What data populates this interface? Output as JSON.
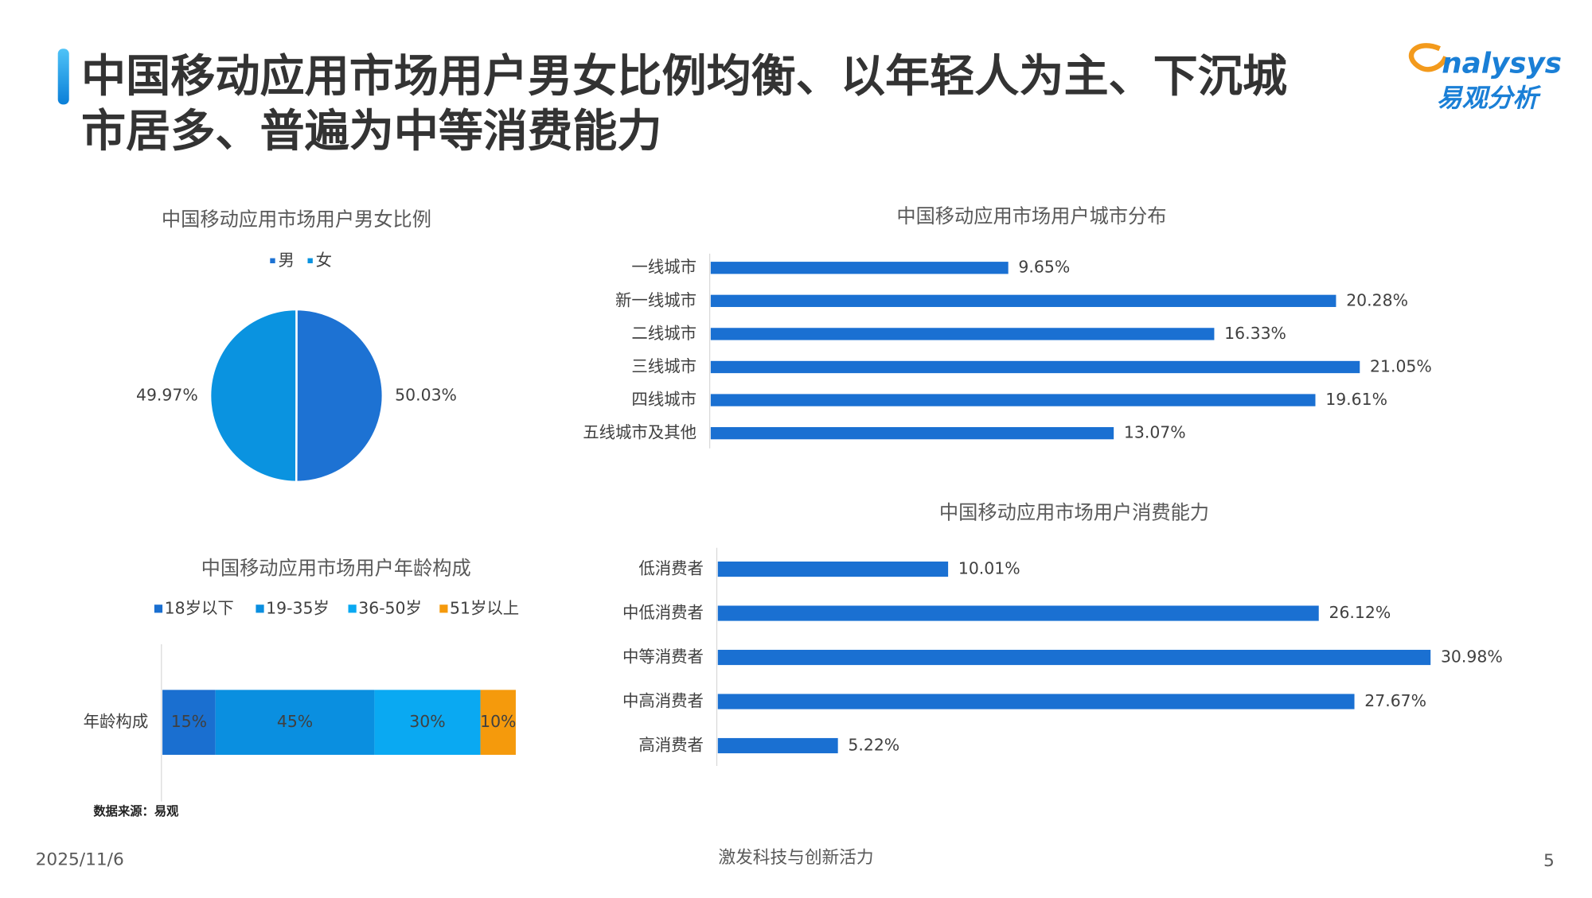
{
  "header": {
    "title": [
      "中国移动应用市场用户男女比例均衡、以年轻人为主、下沉城",
      "市居多、普遍为中等消费能力"
    ],
    "logo_text": "nalysys",
    "logo_cn": "易观分析"
  },
  "chart_data": [
    {
      "type": "pie",
      "title": "中国移动应用市场用户男女比例",
      "categories": [
        "男",
        "女"
      ],
      "values": [
        50.03,
        49.97
      ],
      "value_labels": [
        "50.03%",
        "49.97%"
      ],
      "colors": [
        "#1d72d3",
        "#0a93e0"
      ]
    },
    {
      "type": "bar",
      "title": "中国移动应用市场用户城市分布",
      "categories": [
        "一线城市",
        "新一线城市",
        "二线城市",
        "三线城市",
        "四线城市",
        "五线城市及其他"
      ],
      "values": [
        9.65,
        20.28,
        16.33,
        21.05,
        19.61,
        13.07
      ],
      "value_labels": [
        "9.65%",
        "20.28%",
        "16.33%",
        "21.05%",
        "19.61%",
        "13.07%"
      ],
      "color": "#1a70d2"
    },
    {
      "type": "stacked_bar",
      "title": "中国移动应用市场用户年龄构成",
      "categories": [
        "年龄构成"
      ],
      "series": [
        {
          "name": "18岁以下",
          "color": "#1a6fd0",
          "values": [
            15
          ],
          "value_labels": [
            "15%"
          ]
        },
        {
          "name": "19-35岁",
          "color": "#0a8fe0",
          "values": [
            45
          ],
          "value_labels": [
            "45%"
          ]
        },
        {
          "name": "36-50岁",
          "color": "#0aa9f2",
          "values": [
            30
          ],
          "value_labels": [
            "30%"
          ]
        },
        {
          "name": "51岁以上",
          "color": "#f59a0c",
          "values": [
            10
          ],
          "value_labels": [
            "10%"
          ]
        }
      ]
    },
    {
      "type": "bar",
      "title": "中国移动应用市场用户消费能力",
      "categories": [
        "低消费者",
        "中低消费者",
        "中等消费者",
        "中高消费者",
        "高消费者"
      ],
      "values": [
        10.01,
        26.12,
        30.98,
        27.67,
        5.22
      ],
      "value_labels": [
        "10.01%",
        "26.12%",
        "30.98%",
        "27.67%",
        "5.22%"
      ],
      "color": "#1a70d2"
    }
  ],
  "source": "数据来源：易观",
  "footer": {
    "date": "2025/11/6",
    "slogan": "激发科技与创新活力",
    "page": "5"
  }
}
